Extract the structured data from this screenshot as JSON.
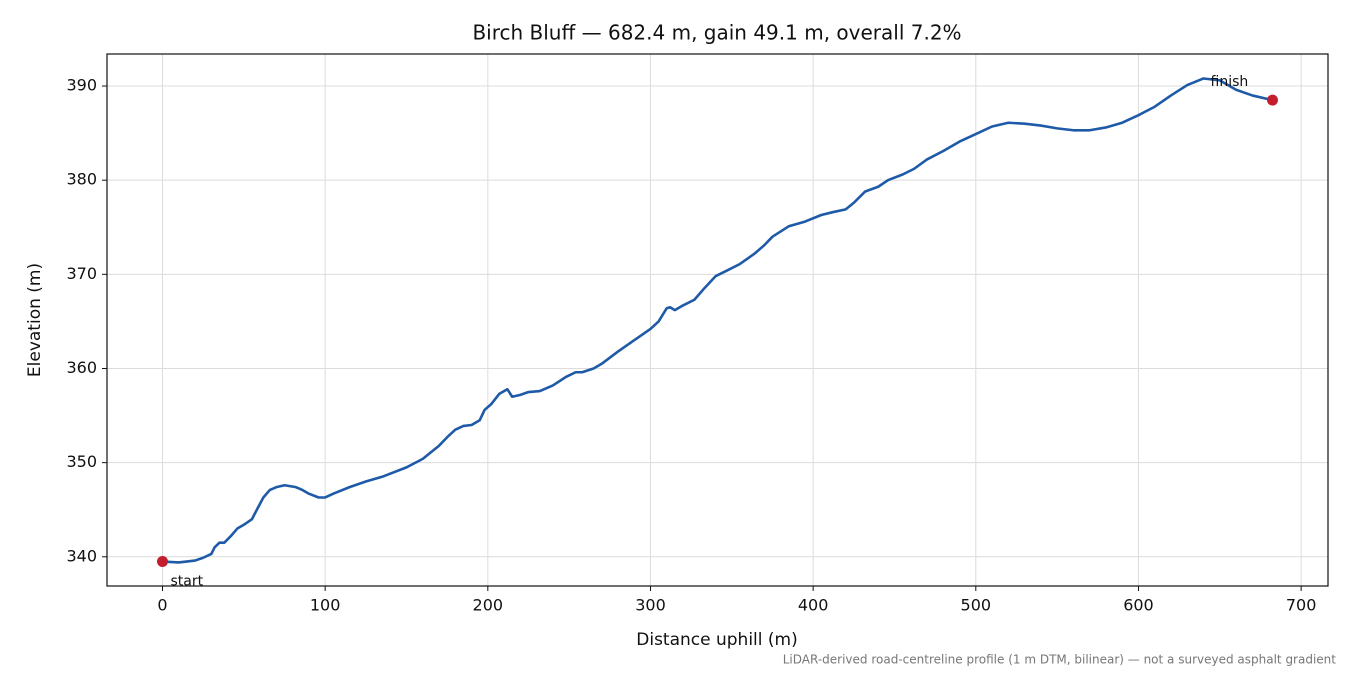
{
  "chart_data": {
    "type": "line",
    "title": "Birch Bluff — 682.4 m, gain 49.1 m, overall 7.2%",
    "x_label": "Distance uphill (m)",
    "y_label": "Elevation (m)",
    "footnote": "LiDAR-derived road-centreline profile (1 m DTM, bilinear) — not a surveyed asphalt gradient",
    "color": "#1f5aa8",
    "grid": true,
    "xlim": [
      -34.12,
      716.52
    ],
    "ylim": [
      336.9,
      393.4
    ],
    "xticks": [
      0,
      100,
      200,
      300,
      400,
      500,
      600,
      700
    ],
    "yticks": [
      340,
      350,
      360,
      370,
      380,
      390
    ],
    "x": [
      0,
      10,
      20,
      25,
      30,
      32,
      35,
      38,
      42,
      46,
      50,
      55,
      58,
      62,
      66,
      70,
      75,
      82,
      86,
      90,
      96,
      100,
      105,
      115,
      125,
      135,
      150,
      160,
      170,
      175,
      180,
      185,
      190,
      195,
      198,
      202,
      207,
      212,
      215,
      220,
      225,
      232,
      240,
      248,
      254,
      258,
      265,
      270,
      280,
      290,
      300,
      305,
      310,
      312,
      315,
      320,
      327,
      333,
      340,
      347,
      355,
      364,
      370,
      375,
      385,
      395,
      405,
      412,
      420,
      425,
      432,
      440,
      446,
      455,
      462,
      470,
      480,
      490,
      500,
      510,
      520,
      530,
      540,
      550,
      560,
      570,
      580,
      590,
      600,
      610,
      620,
      630,
      640,
      650,
      660,
      670,
      682.4
    ],
    "values": [
      339.5,
      339.4,
      339.6,
      339.9,
      340.3,
      341.0,
      341.5,
      341.5,
      342.2,
      343.0,
      343.4,
      344.0,
      345.0,
      346.3,
      347.1,
      347.4,
      347.6,
      347.4,
      347.1,
      346.7,
      346.3,
      346.3,
      346.7,
      347.4,
      348.0,
      348.5,
      349.5,
      350.4,
      351.8,
      352.7,
      353.5,
      353.9,
      354.0,
      354.5,
      355.6,
      356.2,
      357.3,
      357.8,
      357.0,
      357.2,
      357.5,
      357.6,
      358.2,
      359.1,
      359.6,
      359.6,
      360.0,
      360.5,
      361.8,
      363.0,
      364.2,
      365.0,
      366.4,
      366.5,
      366.2,
      366.7,
      367.3,
      368.5,
      369.8,
      370.4,
      371.1,
      372.2,
      373.1,
      374.0,
      375.1,
      375.6,
      376.3,
      376.6,
      376.9,
      377.6,
      378.8,
      379.3,
      380.0,
      380.6,
      381.2,
      382.2,
      383.1,
      384.1,
      384.9,
      385.7,
      386.1,
      386.0,
      385.8,
      385.5,
      385.3,
      385.3,
      385.6,
      386.1,
      386.9,
      387.8,
      389.0,
      390.1,
      390.8,
      390.6,
      389.6,
      389.0,
      388.5
    ],
    "marker_color": "#c41e2e",
    "markers": [
      {
        "label": "start",
        "x": 0,
        "y": 339.5
      },
      {
        "label": "finish",
        "x": 682.4,
        "y": 388.5
      }
    ]
  }
}
